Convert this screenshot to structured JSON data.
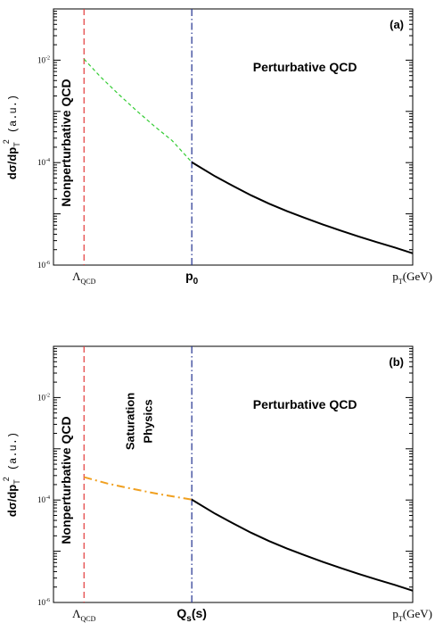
{
  "chart_data": [
    {
      "type": "line",
      "panel_label": "(a)",
      "yscale": "log",
      "ylim": [
        1e-06,
        0.1
      ],
      "xlim": [
        0,
        10
      ],
      "y_ticks": [
        {
          "value": 1e-06,
          "label_base": "10",
          "label_exp": "-6"
        },
        {
          "value": 0.0001,
          "label_base": "10",
          "label_exp": "-4"
        },
        {
          "value": 0.01,
          "label_base": "10",
          "label_exp": "-2"
        }
      ],
      "ylabel": {
        "a": "dσ/dp",
        "sub": "T",
        "sup": "2",
        "b": " (a.u.)"
      },
      "x_ticks": [
        {
          "x": 0.85,
          "main": "Λ",
          "sub": "QCD",
          "style": "serif"
        },
        {
          "x": 3.85,
          "main": "p",
          "sub": "0",
          "style": "bold"
        },
        {
          "x": 10.0,
          "main": "p",
          "sub": "T",
          "suffix": "(GeV)",
          "style": "serif"
        }
      ],
      "vlines": [
        {
          "x": 0.85,
          "color": "#e23a3a",
          "style": "dashed"
        },
        {
          "x": 3.85,
          "color": "#1f2f8f",
          "style": "dashdot"
        }
      ],
      "series": [
        {
          "style": "dashed",
          "color": "#33cc33",
          "width": 1.2,
          "x": [
            0.85,
            1.3,
            1.8,
            2.3,
            2.8,
            3.3,
            3.85
          ],
          "y": [
            0.0105,
            0.0048,
            0.0022,
            0.00105,
            0.00052,
            0.00027,
            0.000102
          ]
        },
        {
          "style": "solid",
          "color": "#000000",
          "width": 2,
          "x": [
            3.85,
            4.5,
            5.0,
            5.5,
            6.0,
            6.5,
            7.0,
            7.5,
            8.0,
            8.5,
            9.0,
            9.5,
            10.0
          ],
          "y": [
            0.000102,
            5.4e-05,
            3.5e-05,
            2.3e-05,
            1.58e-05,
            1.13e-05,
            8.3e-06,
            6.2e-06,
            4.7e-06,
            3.6e-06,
            2.8e-06,
            2.2e-06,
            1.7e-06
          ]
        }
      ],
      "annotations": [
        {
          "id": "nonpert",
          "text": "Nonperturbative QCD",
          "rotate": true
        },
        {
          "id": "pert",
          "text": "Perturbative QCD"
        }
      ]
    },
    {
      "type": "line",
      "panel_label": "(b)",
      "yscale": "log",
      "ylim": [
        1e-06,
        0.1
      ],
      "xlim": [
        0,
        10
      ],
      "y_ticks": [
        {
          "value": 1e-06,
          "label_base": "10",
          "label_exp": "-6"
        },
        {
          "value": 0.0001,
          "label_base": "10",
          "label_exp": "-4"
        },
        {
          "value": 0.01,
          "label_base": "10",
          "label_exp": "-2"
        }
      ],
      "ylabel": {
        "a": "dσ/dp",
        "sub": "T",
        "sup": "2",
        "b": " (a.u.)"
      },
      "x_ticks": [
        {
          "x": 0.85,
          "main": "Λ",
          "sub": "QCD",
          "style": "serif"
        },
        {
          "x": 3.85,
          "main": "Q",
          "sub": "s",
          "suffix": "(s)",
          "style": "bold"
        },
        {
          "x": 10.0,
          "main": "p",
          "sub": "T",
          "suffix": "(GeV)",
          "style": "serif"
        }
      ],
      "vlines": [
        {
          "x": 0.85,
          "color": "#e23a3a",
          "style": "dashed"
        },
        {
          "x": 3.85,
          "color": "#1f2f8f",
          "style": "dashdot"
        }
      ],
      "series": [
        {
          "style": "dashdot",
          "color": "#f0a020",
          "width": 2,
          "x": [
            0.85,
            1.5,
            2.2,
            2.9,
            3.4,
            3.85
          ],
          "y": [
            0.00028,
            0.00021,
            0.000165,
            0.000132,
            0.000115,
            0.000102
          ]
        },
        {
          "style": "solid",
          "color": "#000000",
          "width": 2,
          "x": [
            3.85,
            4.5,
            5.0,
            5.5,
            6.0,
            6.5,
            7.0,
            7.5,
            8.0,
            8.5,
            9.0,
            9.5,
            10.0
          ],
          "y": [
            0.000102,
            5.4e-05,
            3.5e-05,
            2.3e-05,
            1.58e-05,
            1.13e-05,
            8.3e-06,
            6.2e-06,
            4.7e-06,
            3.6e-06,
            2.8e-06,
            2.2e-06,
            1.7e-06
          ]
        }
      ],
      "annotations": [
        {
          "id": "nonpert",
          "text": "Nonperturbative QCD",
          "rotate": true
        },
        {
          "id": "saturation",
          "text": "Saturation Physics",
          "rotate": true
        },
        {
          "id": "pert",
          "text": "Perturbative QCD"
        }
      ]
    }
  ]
}
